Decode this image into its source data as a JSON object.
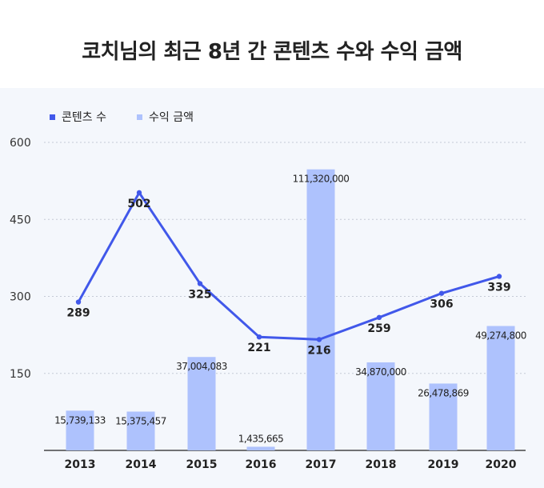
{
  "title": "코치님의 최근 8년 간 콘텐츠 수와 수익 금액",
  "legend": {
    "line_label": "콘텐츠 수",
    "bar_label": "수익 금액"
  },
  "colors": {
    "line": "#4158ea",
    "bar": "#aec2fd",
    "panel": "#f4f7fc"
  },
  "chart_data": {
    "type": "bar",
    "categories": [
      "2013",
      "2014",
      "2015",
      "2016",
      "2017",
      "2018",
      "2019",
      "2020"
    ],
    "y_ticks": [
      "600",
      "450",
      "300",
      "150"
    ],
    "ylim": [
      0,
      600
    ],
    "grid": true,
    "legend_position": "top-left",
    "series": [
      {
        "name": "콘텐츠 수",
        "type": "line",
        "values": [
          289,
          502,
          325,
          221,
          216,
          259,
          306,
          339
        ],
        "labels": [
          "289",
          "502",
          "325",
          "221",
          "216",
          "259",
          "306",
          "339"
        ]
      },
      {
        "name": "수익 금액",
        "type": "bar",
        "values": [
          15739133,
          15375457,
          37004083,
          1435665,
          111320000,
          34870000,
          26478869,
          49274800
        ],
        "labels": [
          "15,739,133",
          "15,375,457",
          "37,004,083",
          "1,435,665",
          "111,320,000",
          "34,870,000",
          "26,478,869",
          "49,274,800"
        ],
        "ylim": [
          0,
          122000000
        ]
      }
    ]
  }
}
